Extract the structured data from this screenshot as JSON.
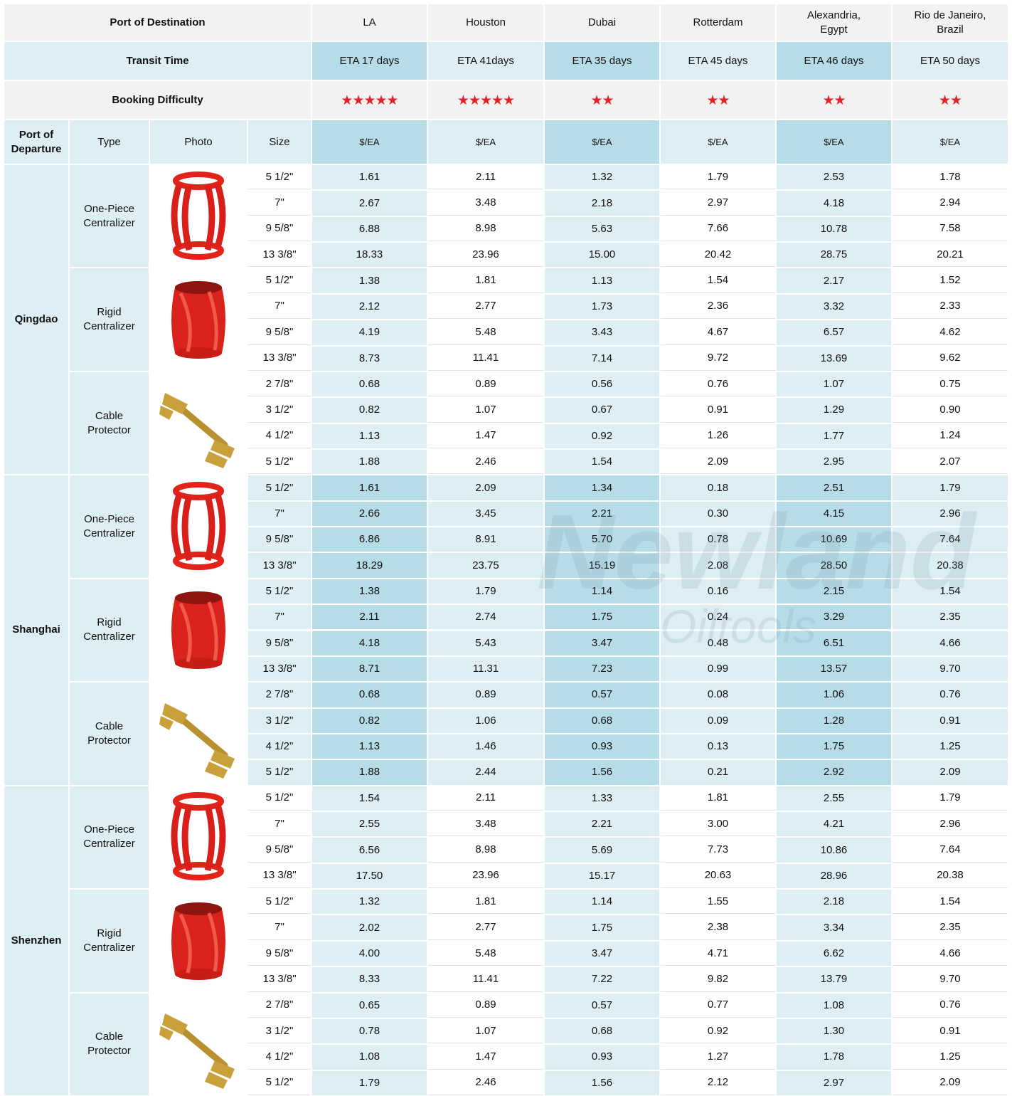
{
  "header": {
    "destination_label": "Port of Destination",
    "destinations": [
      "LA",
      "Houston",
      "Dubai",
      "Rotterdam",
      "Alexandria, Egypt",
      "Rio de Janeiro, Brazil"
    ],
    "transit_label": "Transit  Time",
    "transit_times": [
      "ETA 17 days",
      "ETA 41days",
      "ETA 35 days",
      "ETA 45 days",
      "ETA 46 days",
      "ETA 50 days"
    ],
    "difficulty_label": "Booking Difficulty",
    "difficulty": [
      "★★★★★",
      "★★★★★",
      "★★",
      "★★",
      "★★",
      "★★"
    ]
  },
  "columns": {
    "departure": "Port of Departure",
    "type": "Type",
    "photo": "Photo",
    "size": "Size",
    "unit": "$/EA"
  },
  "departures": [
    {
      "port": "Qingdao",
      "products": [
        {
          "type": "One-Piece Centralizer",
          "sizes": [
            "5 1/2\"",
            "7\"",
            "9 5/8\"",
            "13 3/8\""
          ],
          "prices": [
            [
              "1.61",
              "2.11",
              "1.32",
              "1.79",
              "2.53",
              "1.78"
            ],
            [
              "2.67",
              "3.48",
              "2.18",
              "2.97",
              "4.18",
              "2.94"
            ],
            [
              "6.88",
              "8.98",
              "5.63",
              "7.66",
              "10.78",
              "7.58"
            ],
            [
              "18.33",
              "23.96",
              "15.00",
              "20.42",
              "28.75",
              "20.21"
            ]
          ]
        },
        {
          "type": "Rigid Centralizer",
          "sizes": [
            "5 1/2\"",
            "7\"",
            "9 5/8\"",
            "13 3/8\""
          ],
          "prices": [
            [
              "1.38",
              "1.81",
              "1.13",
              "1.54",
              "2.17",
              "1.52"
            ],
            [
              "2.12",
              "2.77",
              "1.73",
              "2.36",
              "3.32",
              "2.33"
            ],
            [
              "4.19",
              "5.48",
              "3.43",
              "4.67",
              "6.57",
              "4.62"
            ],
            [
              "8.73",
              "11.41",
              "7.14",
              "9.72",
              "13.69",
              "9.62"
            ]
          ]
        },
        {
          "type": "Cable Protector",
          "sizes": [
            "2 7/8\"",
            "3 1/2\"",
            "4 1/2\"",
            "5 1/2\""
          ],
          "prices": [
            [
              "0.68",
              "0.89",
              "0.56",
              "0.76",
              "1.07",
              "0.75"
            ],
            [
              "0.82",
              "1.07",
              "0.67",
              "0.91",
              "1.29",
              "0.90"
            ],
            [
              "1.13",
              "1.47",
              "0.92",
              "1.26",
              "1.77",
              "1.24"
            ],
            [
              "1.88",
              "2.46",
              "1.54",
              "2.09",
              "2.95",
              "2.07"
            ]
          ]
        }
      ]
    },
    {
      "port": "Shanghai",
      "products": [
        {
          "type": "One-Piece Centralizer",
          "sizes": [
            "5 1/2\"",
            "7\"",
            "9 5/8\"",
            "13 3/8\""
          ],
          "prices": [
            [
              "1.61",
              "2.09",
              "1.34",
              "0.18",
              "2.51",
              "1.79"
            ],
            [
              "2.66",
              "3.45",
              "2.21",
              "0.30",
              "4.15",
              "2.96"
            ],
            [
              "6.86",
              "8.91",
              "5.70",
              "0.78",
              "10.69",
              "7.64"
            ],
            [
              "18.29",
              "23.75",
              "15.19",
              "2.08",
              "28.50",
              "20.38"
            ]
          ]
        },
        {
          "type": "Rigid Centralizer",
          "sizes": [
            "5 1/2\"",
            "7\"",
            "9 5/8\"",
            "13 3/8\""
          ],
          "prices": [
            [
              "1.38",
              "1.79",
              "1.14",
              "0.16",
              "2.15",
              "1.54"
            ],
            [
              "2.11",
              "2.74",
              "1.75",
              "0.24",
              "3.29",
              "2.35"
            ],
            [
              "4.18",
              "5.43",
              "3.47",
              "0.48",
              "6.51",
              "4.66"
            ],
            [
              "8.71",
              "11.31",
              "7.23",
              "0.99",
              "13.57",
              "9.70"
            ]
          ]
        },
        {
          "type": "Cable Protector",
          "sizes": [
            "2 7/8\"",
            "3 1/2\"",
            "4 1/2\"",
            "5 1/2\""
          ],
          "prices": [
            [
              "0.68",
              "0.89",
              "0.57",
              "0.08",
              "1.06",
              "0.76"
            ],
            [
              "0.82",
              "1.06",
              "0.68",
              "0.09",
              "1.28",
              "0.91"
            ],
            [
              "1.13",
              "1.46",
              "0.93",
              "0.13",
              "1.75",
              "1.25"
            ],
            [
              "1.88",
              "2.44",
              "1.56",
              "0.21",
              "2.92",
              "2.09"
            ]
          ]
        }
      ]
    },
    {
      "port": "Shenzhen",
      "products": [
        {
          "type": "One-Piece Centralizer",
          "sizes": [
            "5 1/2\"",
            "7\"",
            "9 5/8\"",
            "13 3/8\""
          ],
          "prices": [
            [
              "1.54",
              "2.11",
              "1.33",
              "1.81",
              "2.55",
              "1.79"
            ],
            [
              "2.55",
              "3.48",
              "2.21",
              "3.00",
              "4.21",
              "2.96"
            ],
            [
              "6.56",
              "8.98",
              "5.69",
              "7.73",
              "10.86",
              "7.64"
            ],
            [
              "17.50",
              "23.96",
              "15.17",
              "20.63",
              "28.96",
              "20.38"
            ]
          ]
        },
        {
          "type": "Rigid Centralizer",
          "sizes": [
            "5 1/2\"",
            "7\"",
            "9 5/8\"",
            "13 3/8\""
          ],
          "prices": [
            [
              "1.32",
              "1.81",
              "1.14",
              "1.55",
              "2.18",
              "1.54"
            ],
            [
              "2.02",
              "2.77",
              "1.75",
              "2.38",
              "3.34",
              "2.35"
            ],
            [
              "4.00",
              "5.48",
              "3.47",
              "4.71",
              "6.62",
              "4.66"
            ],
            [
              "8.33",
              "11.41",
              "7.22",
              "9.82",
              "13.79",
              "9.70"
            ]
          ]
        },
        {
          "type": "Cable Protector",
          "sizes": [
            "2 7/8\"",
            "3 1/2\"",
            "4 1/2\"",
            "5 1/2\""
          ],
          "prices": [
            [
              "0.65",
              "0.89",
              "0.57",
              "0.77",
              "1.08",
              "0.76"
            ],
            [
              "0.78",
              "1.07",
              "0.68",
              "0.92",
              "1.30",
              "0.91"
            ],
            [
              "1.08",
              "1.47",
              "0.93",
              "1.27",
              "1.78",
              "1.25"
            ],
            [
              "1.79",
              "2.46",
              "1.56",
              "2.12",
              "2.97",
              "2.09"
            ]
          ]
        }
      ]
    }
  ],
  "watermark": {
    "brand": "Newland",
    "sub": "Oiltools"
  }
}
